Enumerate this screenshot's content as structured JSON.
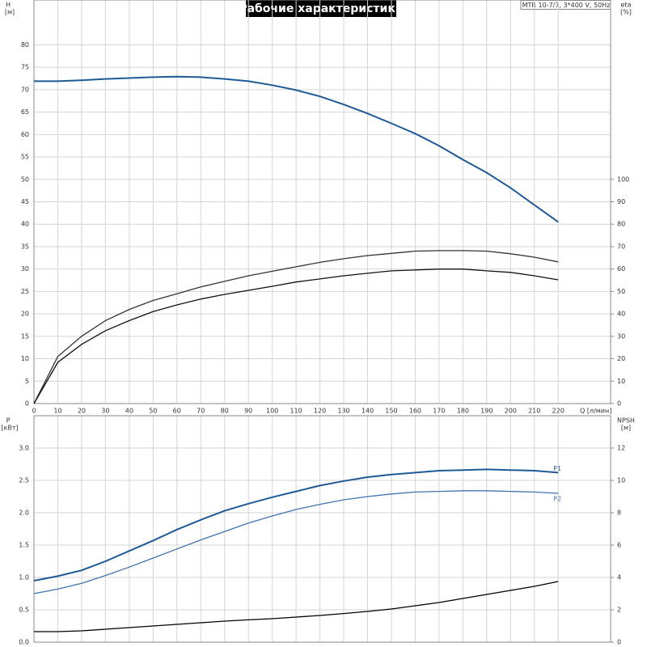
{
  "chart_data": [
    {
      "type": "line",
      "title": "Рабочие характеристики",
      "subtitle": "MTR 10-7/7, 3*400 V, 50Hz",
      "ylabel": "H",
      "yunit": "[м]",
      "y2label": "eta",
      "y2unit": "[%]",
      "xlabel": "Q [л/мин]",
      "x": [
        0,
        10,
        20,
        30,
        40,
        50,
        60,
        70,
        80,
        90,
        100,
        110,
        120,
        130,
        140,
        150,
        160,
        170,
        180,
        190,
        200,
        210,
        220
      ],
      "xlim": [
        0,
        242
      ],
      "xticks": [
        0,
        10,
        20,
        30,
        40,
        50,
        60,
        70,
        80,
        90,
        100,
        110,
        120,
        130,
        140,
        150,
        160,
        170,
        180,
        190,
        200,
        210,
        220
      ],
      "ylim": [
        0,
        90
      ],
      "yticks": [
        0,
        5,
        10,
        15,
        20,
        25,
        30,
        35,
        40,
        45,
        50,
        55,
        60,
        65,
        70,
        75,
        80
      ],
      "y2lim": [
        0,
        180
      ],
      "y2ticks": [
        0,
        10,
        20,
        30,
        40,
        50,
        60,
        70,
        80,
        90,
        100
      ],
      "grid": true,
      "series": [
        {
          "color": "#1f5a96",
          "values": [
            71.9,
            71.9,
            72.1,
            72.4,
            72.6,
            72.8,
            72.9,
            72.8,
            72.4,
            71.9,
            71.0,
            69.9,
            68.5,
            66.7,
            64.7,
            62.5,
            60.2,
            57.5,
            54.4,
            51.5,
            48.1,
            44.3,
            40.5
          ]
        },
        {
          "color": "#333333",
          "axis": "y2",
          "values": [
            0,
            21,
            30,
            37,
            42,
            46,
            49,
            52,
            54.5,
            57,
            59,
            61,
            63,
            64.6,
            66,
            67,
            68,
            68.2,
            68.2,
            68,
            66.8,
            65.3,
            63.2
          ]
        },
        {
          "color": "#111111",
          "axis": "y2",
          "values": [
            0,
            18.4,
            26.4,
            32.5,
            37,
            41,
            44,
            46.6,
            48.7,
            50.5,
            52.3,
            54.2,
            55.6,
            57,
            58.1,
            59.2,
            59.6,
            60,
            60,
            59.2,
            58.5,
            57,
            55.2
          ]
        }
      ]
    },
    {
      "type": "line",
      "ylabel": "P",
      "yunit": "[кВт]",
      "y2label": "NPSH",
      "y2unit": "[м]",
      "x": [
        0,
        10,
        20,
        30,
        40,
        50,
        60,
        70,
        80,
        90,
        100,
        110,
        120,
        130,
        140,
        150,
        160,
        170,
        180,
        190,
        200,
        210,
        220
      ],
      "xlim": [
        0,
        242
      ],
      "ylim": [
        0,
        3.5
      ],
      "yticks": [
        {
          "value": 0,
          "label": "0.0"
        },
        0.5,
        {
          "value": 1,
          "label": "1.0"
        },
        1.5,
        {
          "value": 2,
          "label": "2.0"
        },
        2.5,
        {
          "value": 3,
          "label": "3.0"
        }
      ],
      "y2lim": [
        0,
        14
      ],
      "y2ticks": [
        0,
        2,
        4,
        6,
        8,
        10,
        12
      ],
      "grid": true,
      "series": [
        {
          "name": "P1",
          "color": "#1f5a96",
          "values": [
            0.95,
            1.02,
            1.11,
            1.25,
            1.41,
            1.57,
            1.74,
            1.89,
            2.03,
            2.14,
            2.24,
            2.33,
            2.42,
            2.49,
            2.55,
            2.59,
            2.62,
            2.65,
            2.66,
            2.67,
            2.66,
            2.65,
            2.62
          ]
        },
        {
          "name": "P2",
          "color": "#3f72b0",
          "values": [
            0.75,
            0.82,
            0.91,
            1.03,
            1.16,
            1.3,
            1.44,
            1.58,
            1.71,
            1.84,
            1.95,
            2.05,
            2.13,
            2.2,
            2.25,
            2.29,
            2.32,
            2.33,
            2.34,
            2.34,
            2.33,
            2.32,
            2.3
          ]
        },
        {
          "color": "#000000",
          "axis": "y2",
          "values": [
            0.65,
            0.65,
            0.7,
            0.8,
            0.9,
            1.0,
            1.1,
            1.2,
            1.3,
            1.38,
            1.45,
            1.55,
            1.65,
            1.77,
            1.9,
            2.05,
            2.25,
            2.45,
            2.7,
            2.95,
            3.2,
            3.45,
            3.75
          ]
        }
      ]
    }
  ]
}
